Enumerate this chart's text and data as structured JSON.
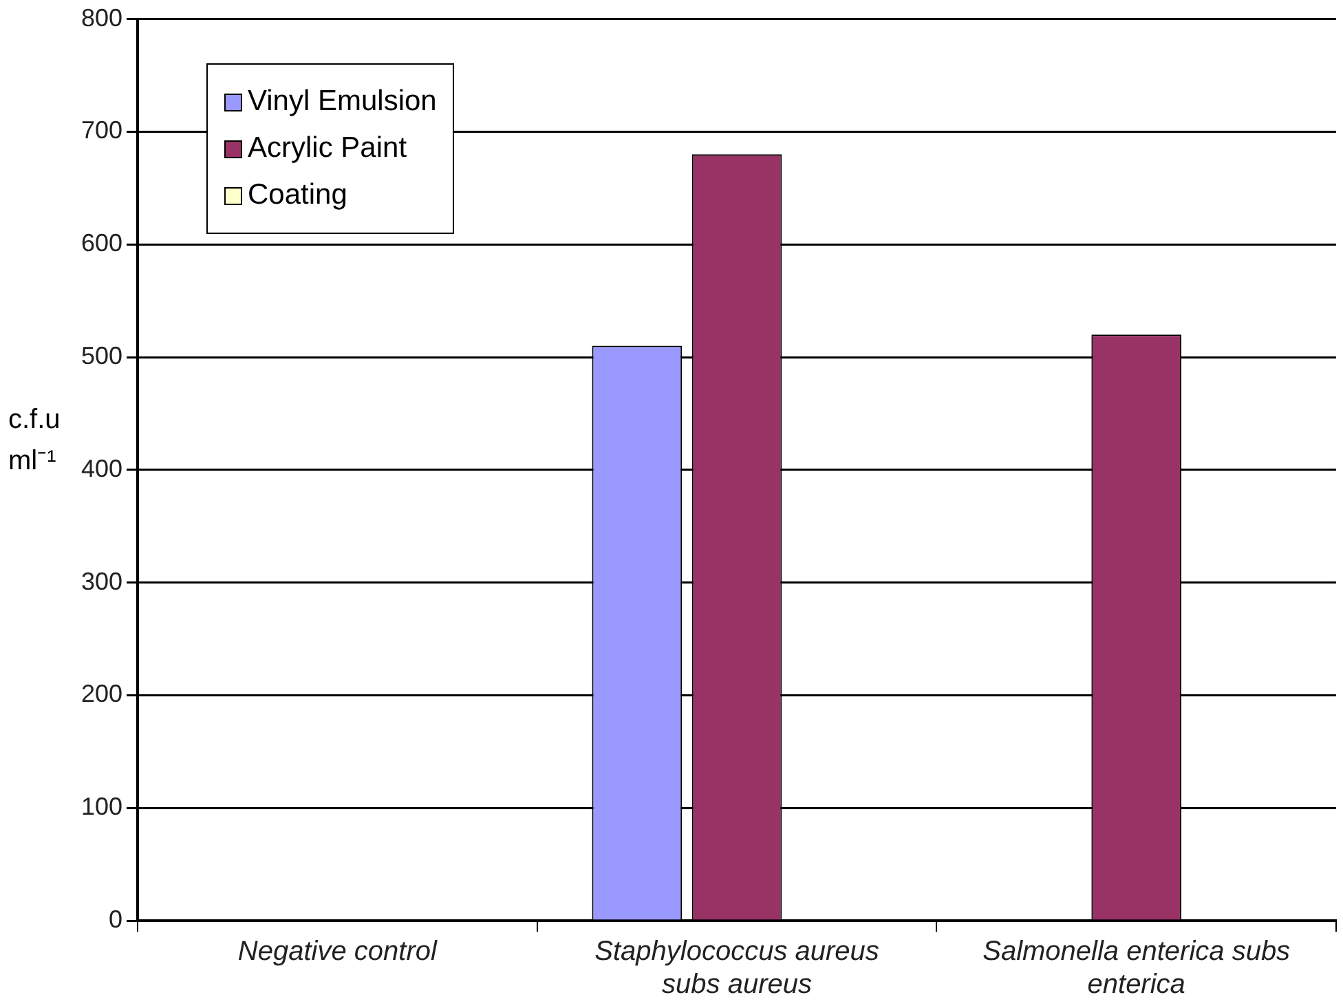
{
  "chart_data": {
    "type": "bar",
    "ylabel": "c.f.u ml⁻¹",
    "categories": [
      "Negative control",
      "Staphylococcus aureus subs aureus",
      "Salmonella enterica subs enterica"
    ],
    "series": [
      {
        "name": "Vinyl Emulsion",
        "color": "#9999ff",
        "values": [
          0,
          510,
          0
        ]
      },
      {
        "name": "Acrylic Paint",
        "color": "#993366",
        "values": [
          0,
          680,
          520
        ]
      },
      {
        "name": "Coating",
        "color": "#ffffcc",
        "values": [
          0,
          0,
          0
        ]
      }
    ],
    "ylim": [
      0,
      800
    ],
    "yticks": [
      0,
      100,
      200,
      300,
      400,
      500,
      600,
      700,
      800
    ],
    "grid": "y",
    "legend": "top left"
  }
}
